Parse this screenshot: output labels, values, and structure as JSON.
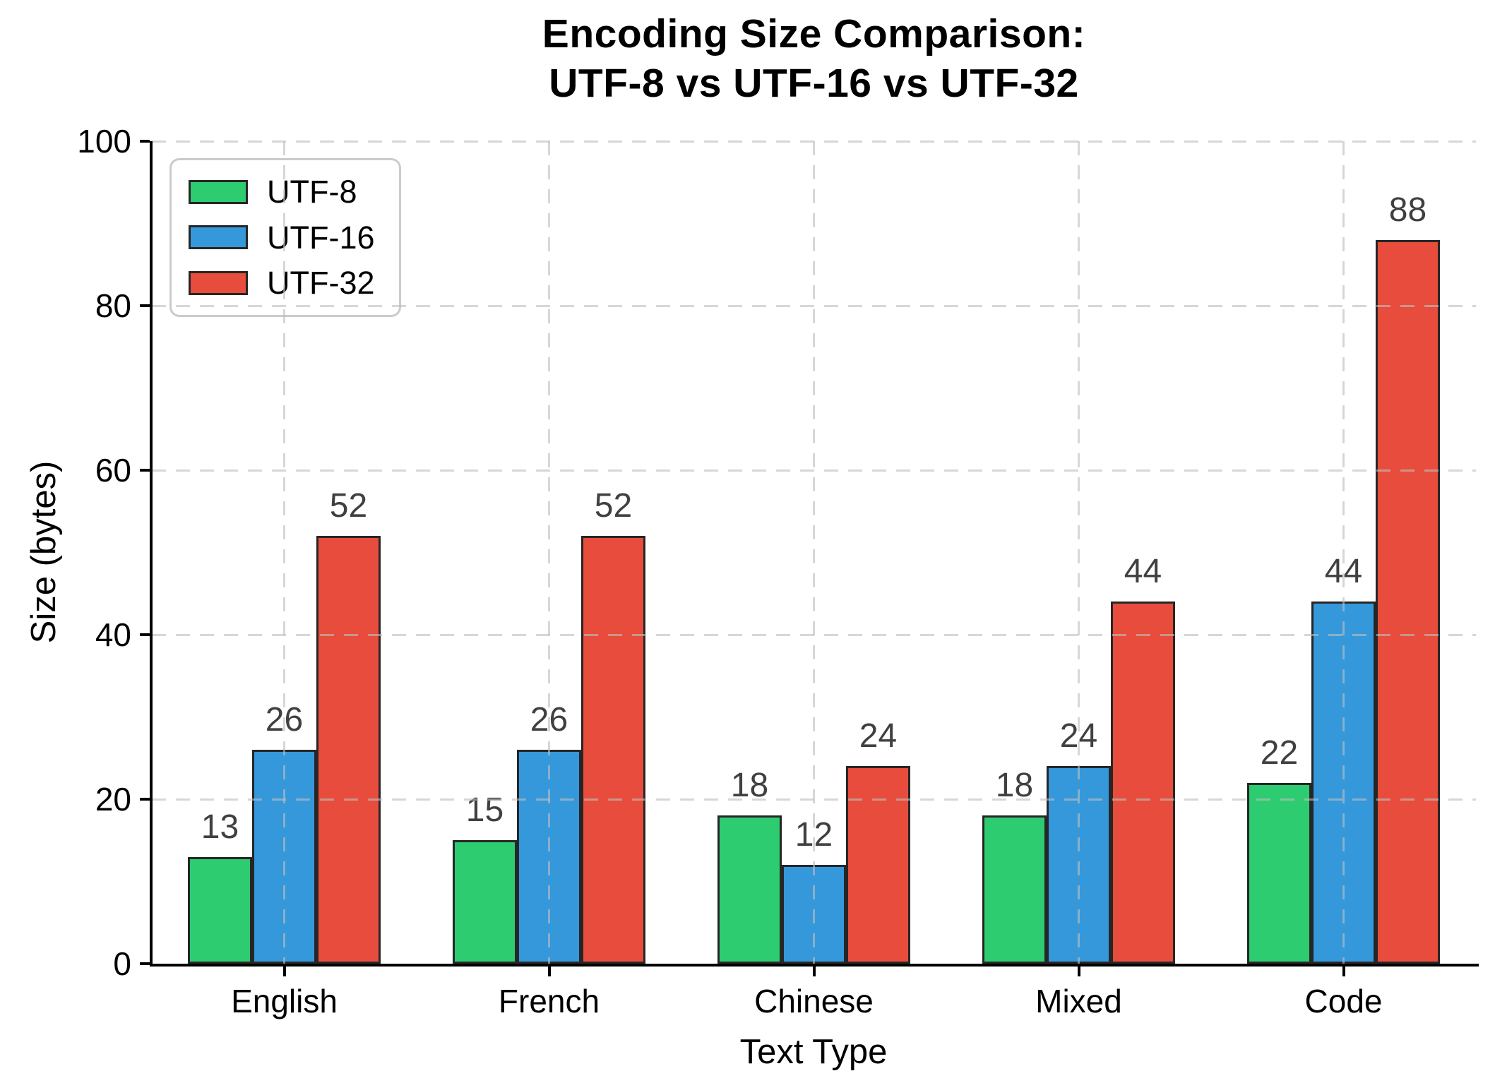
{
  "chart_data": {
    "type": "bar",
    "title": "Encoding Size Comparison:\nUTF-8 vs UTF-16 vs UTF-32",
    "xlabel": "Text Type",
    "ylabel": "Size (bytes)",
    "categories": [
      "English",
      "French",
      "Chinese",
      "Mixed",
      "Code"
    ],
    "series": [
      {
        "name": "UTF-8",
        "color": "#2ecc71",
        "values": [
          13,
          15,
          18,
          18,
          22
        ]
      },
      {
        "name": "UTF-16",
        "color": "#3498db",
        "values": [
          26,
          26,
          12,
          24,
          44
        ]
      },
      {
        "name": "UTF-32",
        "color": "#e74c3c",
        "values": [
          52,
          52,
          24,
          44,
          88
        ]
      }
    ],
    "ylim": [
      0,
      100
    ],
    "yticks": [
      0,
      20,
      40,
      60,
      80,
      100
    ],
    "grid": true,
    "grid_style": "dashed",
    "legend_position": "upper-left",
    "colors": {
      "bar_edge": "#262626",
      "value_label": "#404040",
      "grid": "#d9d9d9",
      "axis": "#000000",
      "legend_border": "#cbcbcb",
      "background": "#ffffff"
    }
  }
}
